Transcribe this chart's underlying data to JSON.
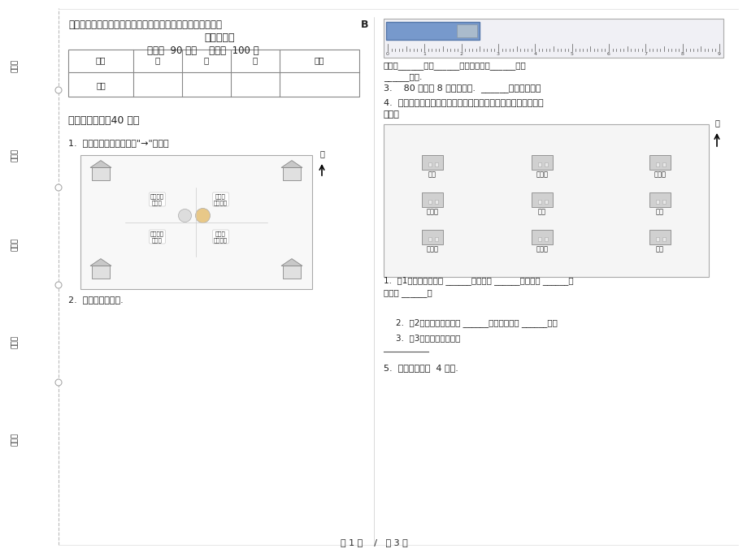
{
  "bg_color": "#ffffff",
  "title_line1": "最新人教版考点总复习三年级上学期小学数学三单元模拟试卷",
  "title_b": "B",
  "title_line2": "卷课后练习",
  "title_line3": "时间：  90 分钟    满分：  100 分",
  "table_headers": [
    "题号",
    "一",
    "二",
    "三",
    "总分"
  ],
  "table_row": [
    "得分",
    "",
    "",
    "",
    ""
  ],
  "section1_title": "一、基础练习（40 分）",
  "q1_text": "1.  他们该在哪里站岗？用\"→\"表示。",
  "q2_text": "2.  看一看，填一填.",
  "right_ruler_text": "小刀长______厘米______毫米；线段长______厘米",
  "right_ruler_text2": "______毫米.",
  "right_q3_text": "3.    80 毫米和 8 分米一样长.  ______（判断对错）",
  "right_q4_text1": "4.  请用学过的东、南、西、北知识说说下面的位置关系，看谁说",
  "right_q4_text2": "得多。",
  "right_q4_sub1a": "1.  （1）医院的东面有 ______，西面有 ______，南面有 ______，",
  "right_q4_sub1b": "北面有 ______。",
  "right_q4_sub2": "2.  （2）医院在电影院的 ______，在游乐园的 ______面。",
  "right_q4_sub3": "3.  （3）还可以怎么说：",
  "right_q5_text": "5.  一块橡皮长约  4 毫米.",
  "page_footer": "第 1 页    /   共 3 页",
  "left_margin_texts": [
    "考号：",
    "考场：",
    "姓名：",
    "班级：",
    "学校："
  ],
  "map_labels": [
    "我守在东\n北方。",
    "我守在\n东南方。",
    "我守在西\n北方。",
    "我守在\n西南方。"
  ],
  "buildings_row1": [
    "学校",
    "电影院",
    "小明家"
  ],
  "buildings_row2": [
    "小东家",
    "医院",
    "商场"
  ],
  "buildings_row3": [
    "小林家",
    "游乐园",
    "报社"
  ],
  "north_text": "北",
  "font_color": "#222222",
  "border_color": "#aaaaaa",
  "table_border": "#888888",
  "light_gray": "#cccccc"
}
